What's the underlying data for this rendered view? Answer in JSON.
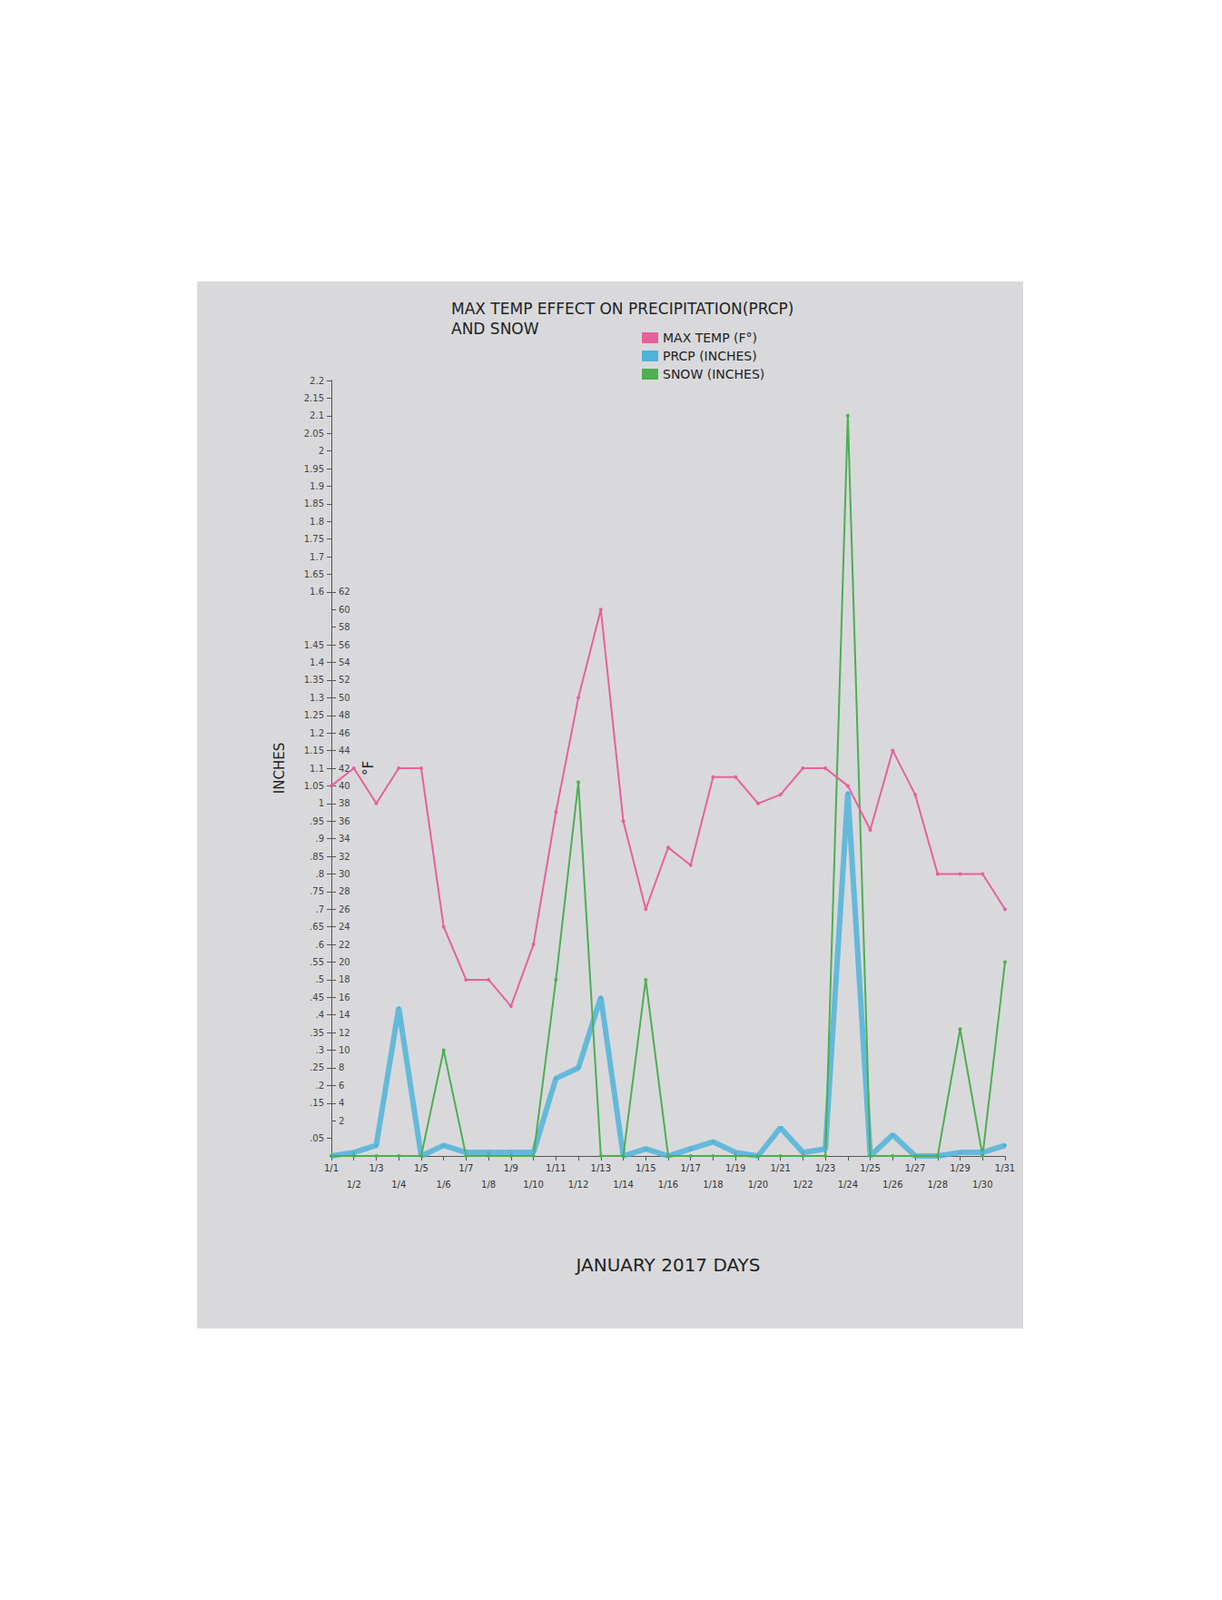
{
  "chart_data": {
    "type": "line",
    "title": "MAX TEMP EFFECT ON PRECIPITATION(PRCP)\nAND SNOW",
    "x_label": "JANUARY 2017 DAYS",
    "y_label": "INCHES",
    "y2_label": "°F",
    "categories": [
      "1/1",
      "1/2",
      "1/3",
      "1/4",
      "1/5",
      "1/6",
      "1/7",
      "1/8",
      "1/9",
      "1/10",
      "1/11",
      "1/12",
      "1/13",
      "1/14",
      "1/15",
      "1/16",
      "1/17",
      "1/18",
      "1/19",
      "1/20",
      "1/21",
      "1/22",
      "1/23",
      "1/24",
      "1/25",
      "1/26",
      "1/27",
      "1/28",
      "1/29",
      "1/30",
      "1/31"
    ],
    "series": [
      {
        "name": "MAX TEMP (F°)",
        "color": "#e8609a",
        "axis": "y2",
        "marker": "circle",
        "line_style": "solid",
        "values": [
          40,
          42,
          38,
          42,
          42,
          24,
          18,
          18,
          15,
          22,
          37,
          50,
          60,
          36,
          26,
          33,
          31,
          41,
          41,
          38,
          39,
          42,
          42,
          40,
          35,
          44,
          39,
          30,
          30,
          30,
          26
        ]
      },
      {
        "name": "PRCP (INCHES)",
        "color": "#4fb3d9",
        "marker": "circle",
        "line_style": "solid",
        "values": [
          0,
          0.01,
          0.03,
          0.42,
          0,
          0.03,
          0.01,
          0.01,
          0.01,
          0.01,
          0.22,
          0.25,
          0.45,
          0,
          0.02,
          0,
          0.02,
          0.04,
          0.01,
          0,
          0.08,
          0.01,
          0.02,
          1.03,
          0,
          0.06,
          0,
          0,
          0.01,
          0.01,
          0.03
        ]
      },
      {
        "name": "SNOW (INCHES)",
        "color": "#4caf50",
        "marker": "circle",
        "line_style": "solid",
        "values": [
          0,
          0,
          0,
          0,
          0,
          0.3,
          0,
          0,
          0,
          0,
          0.5,
          1.06,
          0,
          0,
          0.5,
          0,
          0,
          0,
          0,
          0,
          0,
          0,
          0,
          2.1,
          0,
          0,
          0,
          0,
          0.36,
          0,
          0.55
        ]
      }
    ],
    "ylim": [
      0,
      2.2
    ],
    "yticks": [
      {
        "value": 0.05,
        "label": ".05"
      },
      {
        "value": 0.15,
        "label": ".15"
      },
      {
        "value": 0.2,
        "label": ".2"
      },
      {
        "value": 0.25,
        "label": ".25"
      },
      {
        "value": 0.3,
        "label": ".3"
      },
      {
        "value": 0.35,
        "label": ".35"
      },
      {
        "value": 0.4,
        "label": ".4"
      },
      {
        "value": 0.45,
        "label": ".45"
      },
      {
        "value": 0.5,
        "label": ".5"
      },
      {
        "value": 0.55,
        "label": ".55"
      },
      {
        "value": 0.6,
        "label": ".6"
      },
      {
        "value": 0.65,
        "label": ".65"
      },
      {
        "value": 0.7,
        "label": ".7"
      },
      {
        "value": 0.75,
        "label": ".75"
      },
      {
        "value": 0.8,
        "label": ".8"
      },
      {
        "value": 0.85,
        "label": ".85"
      },
      {
        "value": 0.9,
        "label": ".9"
      },
      {
        "value": 0.95,
        "label": ".95"
      },
      1,
      1.05,
      1.1,
      1.15,
      1.2,
      1.25,
      1.3,
      1.35,
      1.4,
      1.45,
      1.6,
      1.65,
      1.7,
      1.75,
      1.8,
      1.85,
      1.9,
      1.95,
      2,
      2.05,
      2.1,
      2.15,
      2.2
    ],
    "y2lim": [
      -2,
      86
    ],
    "y2ticks": [
      2,
      4,
      6,
      8,
      10,
      12,
      14,
      16,
      18,
      20,
      22,
      24,
      26,
      28,
      30,
      32,
      34,
      36,
      38,
      40,
      42,
      44,
      46,
      48,
      50,
      52,
      54,
      56,
      58,
      60,
      62
    ],
    "legend": "top",
    "grid": false
  }
}
